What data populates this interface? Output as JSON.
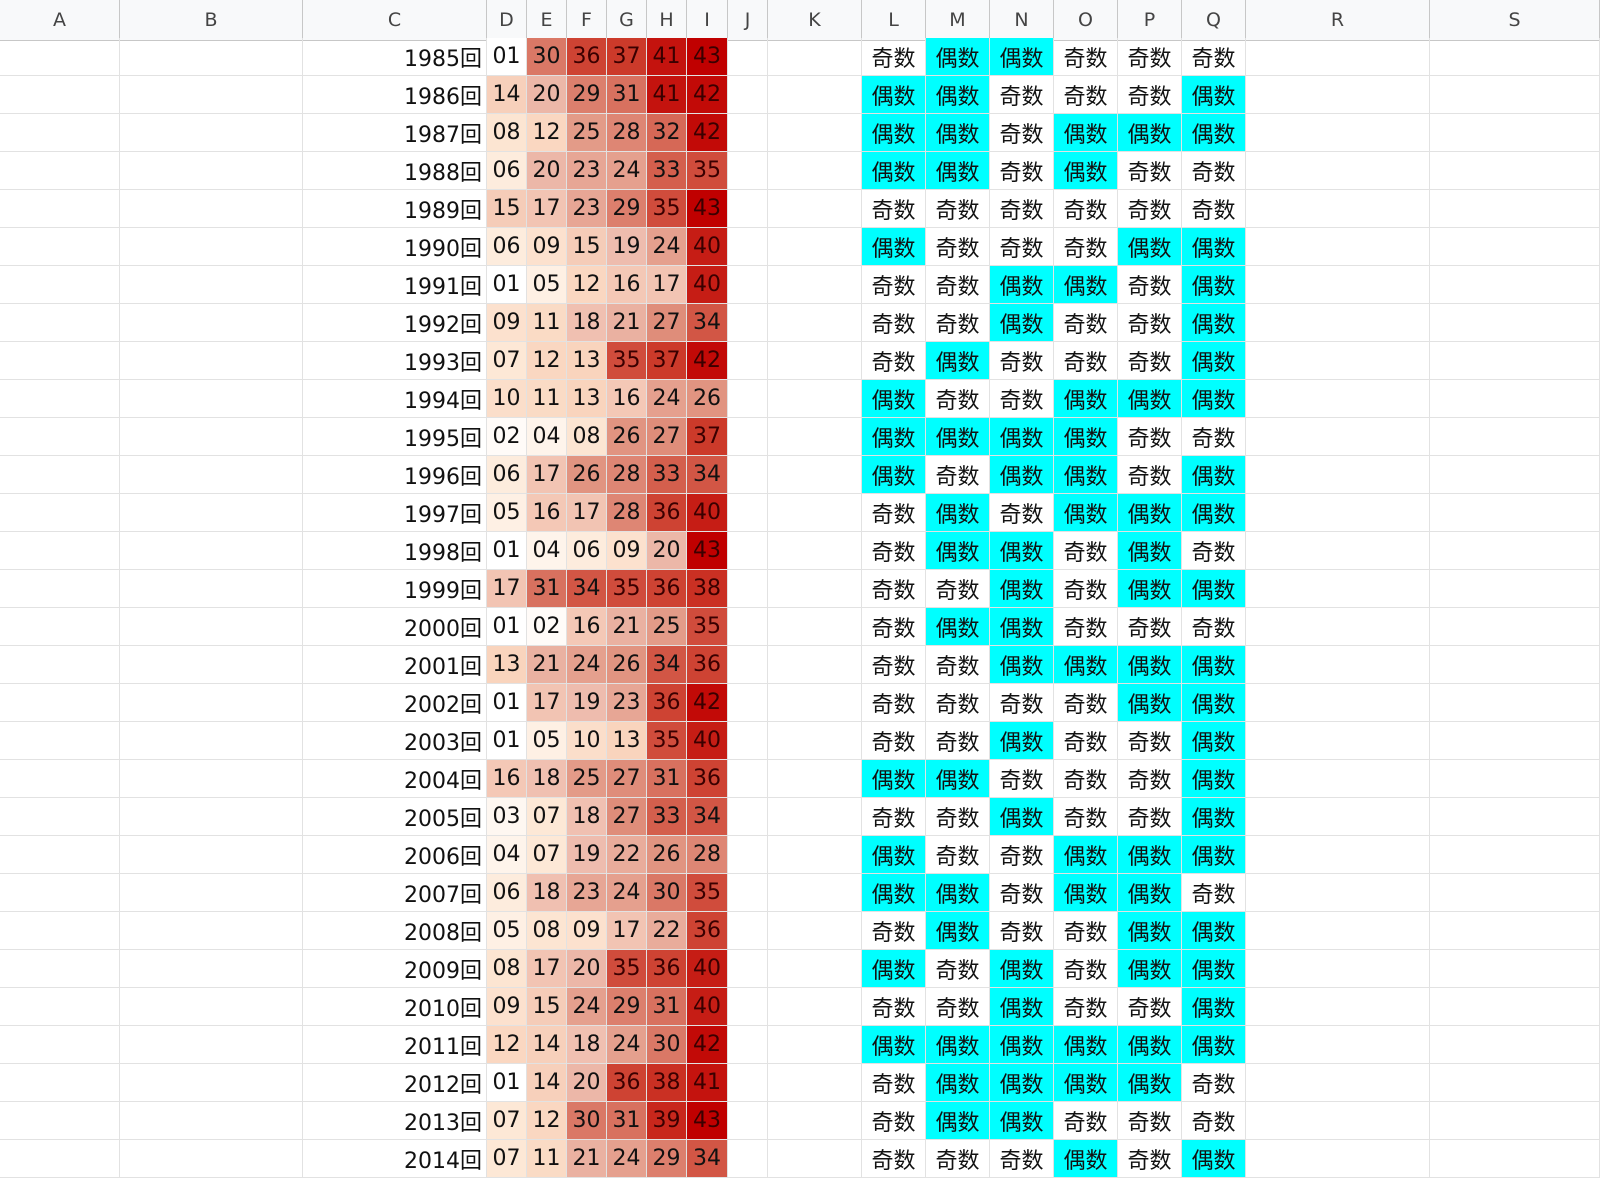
{
  "columns": [
    "A",
    "B",
    "C",
    "D",
    "E",
    "F",
    "G",
    "H",
    "I",
    "J",
    "K",
    "L",
    "M",
    "N",
    "O",
    "P",
    "Q",
    "R",
    "S"
  ],
  "colors": {
    "even_fill": "#00ffff",
    "heat_scale": [
      "#ffffff",
      "#fde8d6",
      "#f9d4bd",
      "#eebcae",
      "#e39b88",
      "#d8715f",
      "#cc3a2a",
      "#c00000"
    ]
  },
  "labels": {
    "round_suffix": "回",
    "odd": "奇数",
    "even": "偶数"
  },
  "rows": [
    {
      "round": "1985回",
      "nums": [
        "01",
        "30",
        "36",
        "37",
        "41",
        "43"
      ],
      "parity": [
        "奇数",
        "偶数",
        "偶数",
        "奇数",
        "奇数",
        "奇数"
      ]
    },
    {
      "round": "1986回",
      "nums": [
        "14",
        "20",
        "29",
        "31",
        "41",
        "42"
      ],
      "parity": [
        "偶数",
        "偶数",
        "奇数",
        "奇数",
        "奇数",
        "偶数"
      ]
    },
    {
      "round": "1987回",
      "nums": [
        "08",
        "12",
        "25",
        "28",
        "32",
        "42"
      ],
      "parity": [
        "偶数",
        "偶数",
        "奇数",
        "偶数",
        "偶数",
        "偶数"
      ]
    },
    {
      "round": "1988回",
      "nums": [
        "06",
        "20",
        "23",
        "24",
        "33",
        "35"
      ],
      "parity": [
        "偶数",
        "偶数",
        "奇数",
        "偶数",
        "奇数",
        "奇数"
      ]
    },
    {
      "round": "1989回",
      "nums": [
        "15",
        "17",
        "23",
        "29",
        "35",
        "43"
      ],
      "parity": [
        "奇数",
        "奇数",
        "奇数",
        "奇数",
        "奇数",
        "奇数"
      ]
    },
    {
      "round": "1990回",
      "nums": [
        "06",
        "09",
        "15",
        "19",
        "24",
        "40"
      ],
      "parity": [
        "偶数",
        "奇数",
        "奇数",
        "奇数",
        "偶数",
        "偶数"
      ]
    },
    {
      "round": "1991回",
      "nums": [
        "01",
        "05",
        "12",
        "16",
        "17",
        "40"
      ],
      "parity": [
        "奇数",
        "奇数",
        "偶数",
        "偶数",
        "奇数",
        "偶数"
      ]
    },
    {
      "round": "1992回",
      "nums": [
        "09",
        "11",
        "18",
        "21",
        "27",
        "34"
      ],
      "parity": [
        "奇数",
        "奇数",
        "偶数",
        "奇数",
        "奇数",
        "偶数"
      ]
    },
    {
      "round": "1993回",
      "nums": [
        "07",
        "12",
        "13",
        "35",
        "37",
        "42"
      ],
      "parity": [
        "奇数",
        "偶数",
        "奇数",
        "奇数",
        "奇数",
        "偶数"
      ]
    },
    {
      "round": "1994回",
      "nums": [
        "10",
        "11",
        "13",
        "16",
        "24",
        "26"
      ],
      "parity": [
        "偶数",
        "奇数",
        "奇数",
        "偶数",
        "偶数",
        "偶数"
      ]
    },
    {
      "round": "1995回",
      "nums": [
        "02",
        "04",
        "08",
        "26",
        "27",
        "37"
      ],
      "parity": [
        "偶数",
        "偶数",
        "偶数",
        "偶数",
        "奇数",
        "奇数"
      ]
    },
    {
      "round": "1996回",
      "nums": [
        "06",
        "17",
        "26",
        "28",
        "33",
        "34"
      ],
      "parity": [
        "偶数",
        "奇数",
        "偶数",
        "偶数",
        "奇数",
        "偶数"
      ]
    },
    {
      "round": "1997回",
      "nums": [
        "05",
        "16",
        "17",
        "28",
        "36",
        "40"
      ],
      "parity": [
        "奇数",
        "偶数",
        "奇数",
        "偶数",
        "偶数",
        "偶数"
      ]
    },
    {
      "round": "1998回",
      "nums": [
        "01",
        "04",
        "06",
        "09",
        "20",
        "43"
      ],
      "parity": [
        "奇数",
        "偶数",
        "偶数",
        "奇数",
        "偶数",
        "奇数"
      ]
    },
    {
      "round": "1999回",
      "nums": [
        "17",
        "31",
        "34",
        "35",
        "36",
        "38"
      ],
      "parity": [
        "奇数",
        "奇数",
        "偶数",
        "奇数",
        "偶数",
        "偶数"
      ]
    },
    {
      "round": "2000回",
      "nums": [
        "01",
        "02",
        "16",
        "21",
        "25",
        "35"
      ],
      "parity": [
        "奇数",
        "偶数",
        "偶数",
        "奇数",
        "奇数",
        "奇数"
      ]
    },
    {
      "round": "2001回",
      "nums": [
        "13",
        "21",
        "24",
        "26",
        "34",
        "36"
      ],
      "parity": [
        "奇数",
        "奇数",
        "偶数",
        "偶数",
        "偶数",
        "偶数"
      ]
    },
    {
      "round": "2002回",
      "nums": [
        "01",
        "17",
        "19",
        "23",
        "36",
        "42"
      ],
      "parity": [
        "奇数",
        "奇数",
        "奇数",
        "奇数",
        "偶数",
        "偶数"
      ]
    },
    {
      "round": "2003回",
      "nums": [
        "01",
        "05",
        "10",
        "13",
        "35",
        "40"
      ],
      "parity": [
        "奇数",
        "奇数",
        "偶数",
        "奇数",
        "奇数",
        "偶数"
      ]
    },
    {
      "round": "2004回",
      "nums": [
        "16",
        "18",
        "25",
        "27",
        "31",
        "36"
      ],
      "parity": [
        "偶数",
        "偶数",
        "奇数",
        "奇数",
        "奇数",
        "偶数"
      ]
    },
    {
      "round": "2005回",
      "nums": [
        "03",
        "07",
        "18",
        "27",
        "33",
        "34"
      ],
      "parity": [
        "奇数",
        "奇数",
        "偶数",
        "奇数",
        "奇数",
        "偶数"
      ]
    },
    {
      "round": "2006回",
      "nums": [
        "04",
        "07",
        "19",
        "22",
        "26",
        "28"
      ],
      "parity": [
        "偶数",
        "奇数",
        "奇数",
        "偶数",
        "偶数",
        "偶数"
      ]
    },
    {
      "round": "2007回",
      "nums": [
        "06",
        "18",
        "23",
        "24",
        "30",
        "35"
      ],
      "parity": [
        "偶数",
        "偶数",
        "奇数",
        "偶数",
        "偶数",
        "奇数"
      ]
    },
    {
      "round": "2008回",
      "nums": [
        "05",
        "08",
        "09",
        "17",
        "22",
        "36"
      ],
      "parity": [
        "奇数",
        "偶数",
        "奇数",
        "奇数",
        "偶数",
        "偶数"
      ]
    },
    {
      "round": "2009回",
      "nums": [
        "08",
        "17",
        "20",
        "35",
        "36",
        "40"
      ],
      "parity": [
        "偶数",
        "奇数",
        "偶数",
        "奇数",
        "偶数",
        "偶数"
      ]
    },
    {
      "round": "2010回",
      "nums": [
        "09",
        "15",
        "24",
        "29",
        "31",
        "40"
      ],
      "parity": [
        "奇数",
        "奇数",
        "偶数",
        "奇数",
        "奇数",
        "偶数"
      ]
    },
    {
      "round": "2011回",
      "nums": [
        "12",
        "14",
        "18",
        "24",
        "30",
        "42"
      ],
      "parity": [
        "偶数",
        "偶数",
        "偶数",
        "偶数",
        "偶数",
        "偶数"
      ]
    },
    {
      "round": "2012回",
      "nums": [
        "01",
        "14",
        "20",
        "36",
        "38",
        "41"
      ],
      "parity": [
        "奇数",
        "偶数",
        "偶数",
        "偶数",
        "偶数",
        "奇数"
      ]
    },
    {
      "round": "2013回",
      "nums": [
        "07",
        "12",
        "30",
        "31",
        "39",
        "43"
      ],
      "parity": [
        "奇数",
        "偶数",
        "偶数",
        "奇数",
        "奇数",
        "奇数"
      ]
    },
    {
      "round": "2014回",
      "nums": [
        "07",
        "11",
        "21",
        "24",
        "29",
        "34"
      ],
      "parity": [
        "奇数",
        "奇数",
        "奇数",
        "偶数",
        "奇数",
        "偶数"
      ]
    }
  ]
}
